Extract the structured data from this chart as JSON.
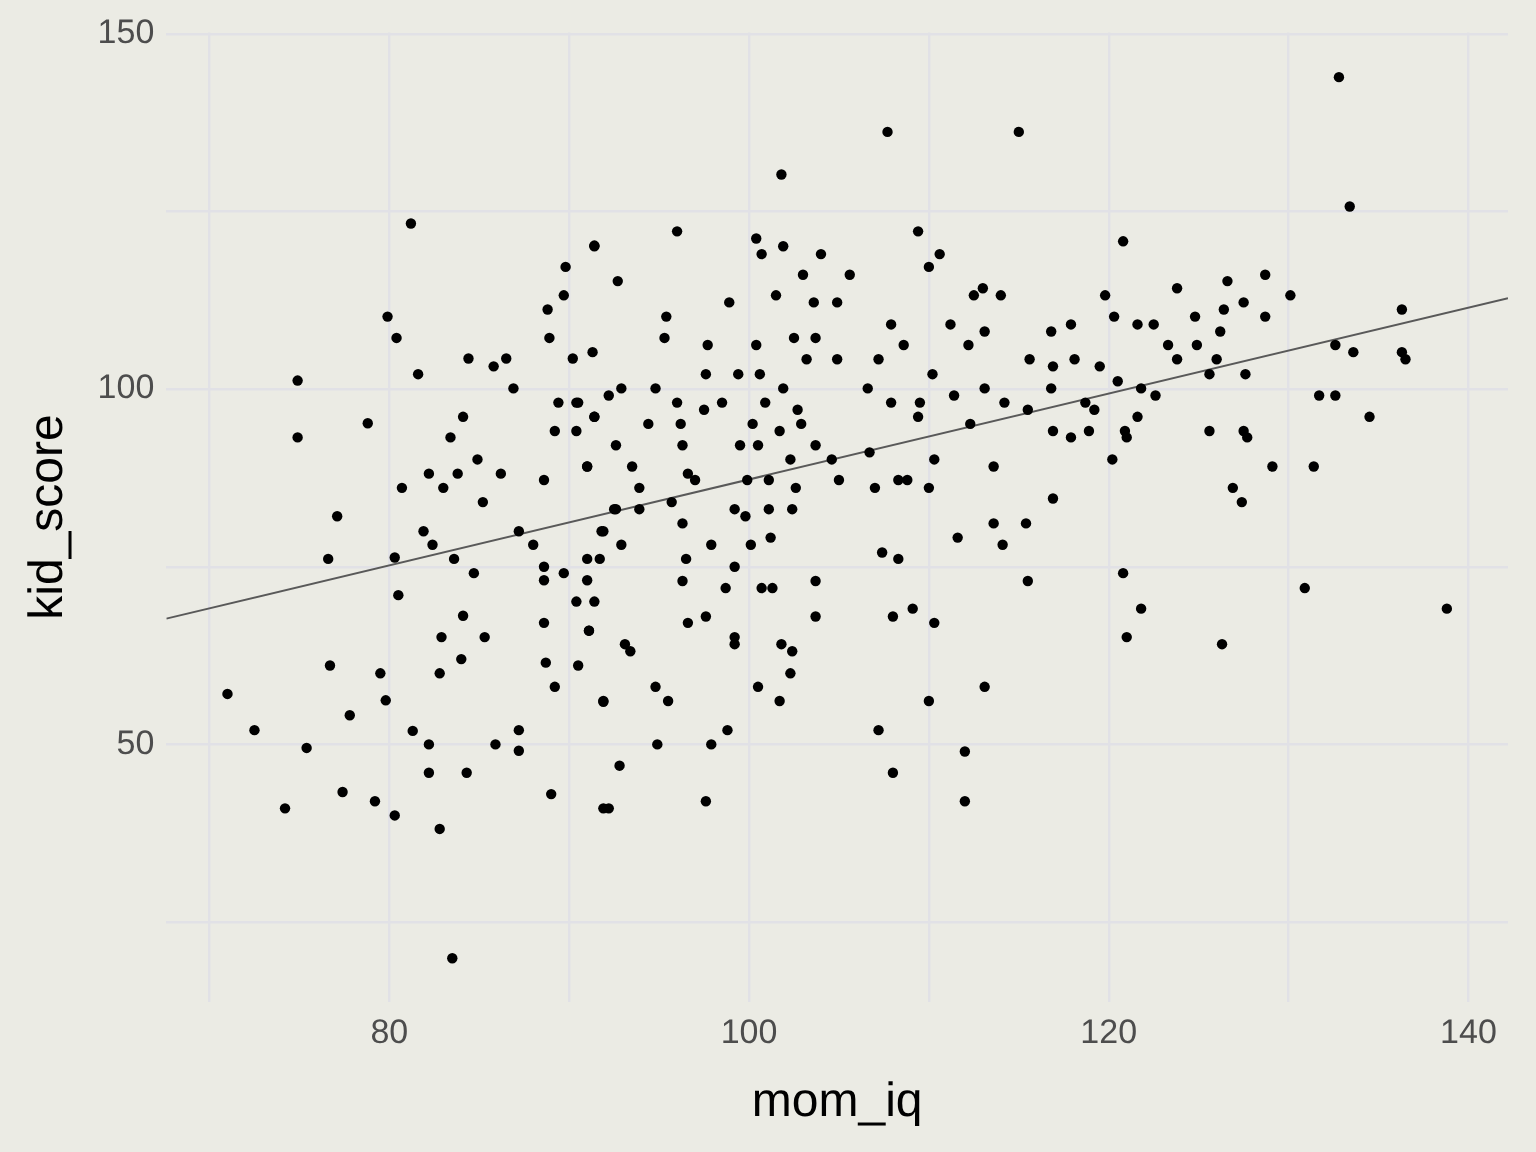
{
  "chart_data": {
    "type": "scatter",
    "xlabel": "mom_iq",
    "ylabel": "kid_score",
    "xlim": [
      67.6,
      142.2
    ],
    "ylim": [
      13.8,
      150.2
    ],
    "xticks": [
      {
        "value": 70,
        "label": null
      },
      80,
      {
        "value": 90,
        "label": null
      },
      100,
      {
        "value": 110,
        "label": null
      },
      120,
      {
        "value": 130,
        "label": null
      },
      140
    ],
    "yticks": [
      {
        "value": 25,
        "label": null
      },
      50,
      {
        "value": 75,
        "label": null
      },
      100,
      {
        "value": 125,
        "label": null
      },
      150
    ],
    "grid": true,
    "series": [
      {
        "color": "#000000",
        "marker": "circle",
        "x": [
          81.2,
          74.9,
          74.9,
          71.0,
          72.5,
          74.2,
          75.4,
          76.7,
          76.6,
          77.1,
          78.8,
          79.9,
          80.4,
          81.6,
          80.7,
          80.3,
          80.5,
          79.5,
          79.8,
          77.8,
          77.4,
          79.2,
          80.3,
          81.3,
          82.2,
          82.8,
          83.5,
          84.3,
          82.2,
          82.8,
          82.9,
          84.1,
          84.0,
          85.3,
          85.9,
          87.2,
          87.2,
          89.0,
          88.6,
          88.7,
          89.2,
          90.5,
          91.9,
          92.2,
          91.1,
          91.4,
          90.4,
          91.0,
          91.7,
          89.7,
          88.6,
          84.7,
          83.6,
          82.4,
          81.9,
          82.2,
          83.0,
          83.8,
          83.4,
          84.1,
          84.4,
          85.8,
          86.5,
          86.9,
          84.9,
          85.2,
          86.2,
          87.2,
          88.0,
          88.6,
          88.6,
          89.2,
          90.4,
          89.4,
          90.4,
          89.8,
          89.7,
          88.8,
          88.9,
          90.2,
          91.4,
          91.4,
          91.0,
          91.9,
          92.6,
          107.7,
          115.0,
          101.8,
          96.0,
          91.4,
          100.4,
          100.7,
          101.9,
          104.0,
          103.0,
          105.6,
          109.4,
          110.0,
          110.6,
          92.7,
          98.9,
          95.4,
          101.5,
          103.6,
          104.9,
          107.9,
          113.0,
          112.5,
          114.0,
          111.2,
          113.1,
          91.3,
          95.3,
          97.7,
          100.4,
          102.5,
          103.7,
          103.2,
          104.9,
          107.2,
          108.6,
          112.2,
          115.6,
          97.6,
          99.4,
          100.6,
          96.0,
          94.8,
          92.9,
          92.2,
          90.5,
          91.4,
          94.4,
          96.2,
          98.5,
          97.5,
          100.9,
          101.9,
          102.7,
          106.6,
          107.9,
          109.5,
          109.4,
          110.2,
          111.4,
          113.1,
          114.2,
          115.5,
          112.3,
          100.2,
          101.7,
          102.9,
          91.0,
          92.6,
          93.5,
          96.3,
          96.6,
          99.5,
          100.5,
          102.3,
          103.7,
          104.6,
          106.7,
          105.0,
          108.3,
          108.8,
          110.0,
          110.3,
          113.6,
          93.9,
          97.0,
          99.9,
          101.1,
          102.6,
          92.5,
          93.9,
          95.7,
          99.2,
          101.1,
          102.4,
          96.3,
          99.8,
          91.8,
          92.9,
          97.9,
          100.1,
          101.2,
          107.0,
          107.4,
          108.3,
          111.6,
          113.6,
          114.1,
          115.4,
          115.5,
          91.0,
          96.5,
          99.2,
          96.3,
          98.7,
          100.7,
          101.3,
          103.7,
          103.7,
          96.6,
          97.6,
          99.2,
          99.2,
          101.8,
          102.4,
          102.3,
          100.5,
          101.7,
          94.8,
          95.5,
          91.9,
          93.1,
          93.4,
          91.1,
          94.9,
          97.9,
          98.8,
          97.6,
          92.8,
          91.9,
          108.0,
          109.1,
          110.3,
          110.0,
          113.1,
          107.2,
          108.0,
          112.0,
          112.0,
          132.8,
          133.4,
          120.8,
          128.7,
          126.6,
          130.1,
          123.8,
          119.8,
          127.5,
          126.4,
          124.8,
          128.7,
          120.3,
          121.6,
          122.5,
          117.9,
          116.8,
          126.2,
          136.3,
          123.3,
          124.9,
          132.6,
          133.6,
          136.3,
          136.5,
          123.8,
          126.0,
          118.1,
          116.9,
          119.5,
          125.6,
          127.6,
          120.5,
          116.8,
          121.8,
          122.6,
          131.7,
          132.6,
          118.7,
          119.2,
          121.6,
          134.5,
          116.9,
          118.9,
          120.9,
          125.6,
          127.5,
          117.9,
          121.0,
          127.7,
          120.2,
          129.1,
          131.4,
          116.9,
          126.9,
          127.4,
          120.8,
          130.9,
          121.8,
          138.8,
          121.0,
          126.3
        ],
        "values": [
          123.3,
          101.2,
          93.2,
          57.1,
          52.0,
          41.0,
          49.5,
          61.1,
          76.1,
          82.1,
          95.2,
          110.2,
          107.2,
          102.1,
          86.1,
          76.3,
          71.0,
          60.0,
          56.2,
          54.1,
          43.3,
          42.0,
          40.0,
          51.9,
          46.0,
          38.1,
          19.9,
          46.0,
          50.0,
          60.0,
          65.1,
          68.1,
          62.0,
          65.1,
          50.0,
          49.1,
          52.0,
          43.0,
          67.1,
          61.5,
          58.1,
          61.1,
          56.0,
          41.0,
          66.0,
          70.1,
          70.1,
          73.1,
          76.1,
          74.1,
          73.1,
          74.1,
          76.1,
          78.1,
          80.0,
          88.1,
          86.1,
          88.1,
          93.2,
          96.1,
          104.3,
          103.2,
          104.3,
          100.1,
          90.1,
          84.1,
          88.1,
          80.0,
          78.1,
          87.2,
          75.0,
          94.1,
          94.1,
          98.1,
          98.1,
          117.2,
          113.2,
          111.2,
          107.2,
          104.3,
          120.2,
          96.1,
          89.1,
          80.0,
          83.1,
          136.2,
          136.2,
          130.2,
          122.2,
          120.1,
          121.2,
          119.0,
          120.1,
          119.0,
          116.1,
          116.1,
          122.2,
          117.2,
          119.0,
          115.2,
          112.2,
          110.2,
          113.2,
          112.2,
          112.2,
          109.1,
          114.2,
          113.2,
          113.2,
          109.1,
          108.1,
          105.2,
          107.2,
          106.2,
          106.2,
          107.2,
          107.2,
          104.2,
          104.2,
          104.2,
          106.2,
          106.2,
          104.2,
          102.1,
          102.1,
          102.1,
          98.1,
          100.1,
          100.1,
          99.1,
          98.1,
          96.1,
          95.1,
          95.1,
          98.1,
          97.1,
          98.1,
          100.1,
          97.1,
          100.1,
          98.1,
          98.1,
          96.1,
          102.1,
          99.1,
          100.1,
          98.1,
          97.1,
          95.1,
          95.1,
          94.1,
          95.1,
          89.1,
          92.1,
          89.1,
          92.1,
          88.1,
          92.1,
          92.1,
          90.1,
          92.1,
          90.1,
          91.1,
          87.2,
          87.2,
          87.2,
          86.1,
          90.1,
          89.1,
          86.1,
          87.2,
          87.2,
          87.2,
          86.1,
          83.1,
          83.1,
          84.1,
          83.1,
          83.1,
          83.1,
          81.1,
          82.1,
          80.0,
          78.1,
          78.1,
          78.1,
          79.1,
          86.1,
          77.0,
          76.1,
          79.1,
          81.1,
          78.1,
          81.1,
          73.0,
          76.1,
          76.1,
          75.0,
          73.0,
          72.0,
          72.0,
          72.0,
          73.0,
          68.0,
          67.1,
          68.0,
          65.1,
          64.1,
          64.1,
          63.1,
          60.0,
          58.1,
          56.1,
          58.1,
          56.1,
          56.1,
          64.1,
          63.1,
          66.0,
          50.0,
          50.0,
          52.0,
          42.0,
          47.0,
          41.0,
          68.0,
          69.1,
          67.1,
          56.1,
          58.1,
          52.0,
          46.0,
          49.0,
          42.0,
          143.9,
          125.7,
          120.8,
          116.1,
          115.2,
          113.2,
          114.2,
          113.2,
          112.2,
          111.2,
          110.2,
          110.2,
          110.2,
          109.1,
          109.1,
          109.1,
          108.1,
          108.1,
          111.2,
          106.2,
          106.2,
          106.2,
          105.2,
          105.2,
          104.2,
          104.2,
          104.2,
          104.2,
          103.2,
          103.2,
          102.1,
          102.1,
          101.1,
          100.1,
          100.1,
          99.1,
          99.1,
          99.1,
          98.1,
          97.1,
          96.1,
          96.1,
          94.1,
          94.1,
          94.1,
          94.1,
          94.1,
          93.2,
          93.2,
          93.2,
          90.1,
          89.1,
          89.1,
          84.6,
          86.1,
          84.1,
          74.1,
          72.0,
          69.1,
          69.1,
          65.1,
          64.1
        ]
      },
      {
        "type": "line",
        "marker": "none",
        "color": "#595959",
        "x": [
          67.6,
          142.2
        ],
        "values": [
          67.7,
          112.8
        ]
      }
    ]
  }
}
